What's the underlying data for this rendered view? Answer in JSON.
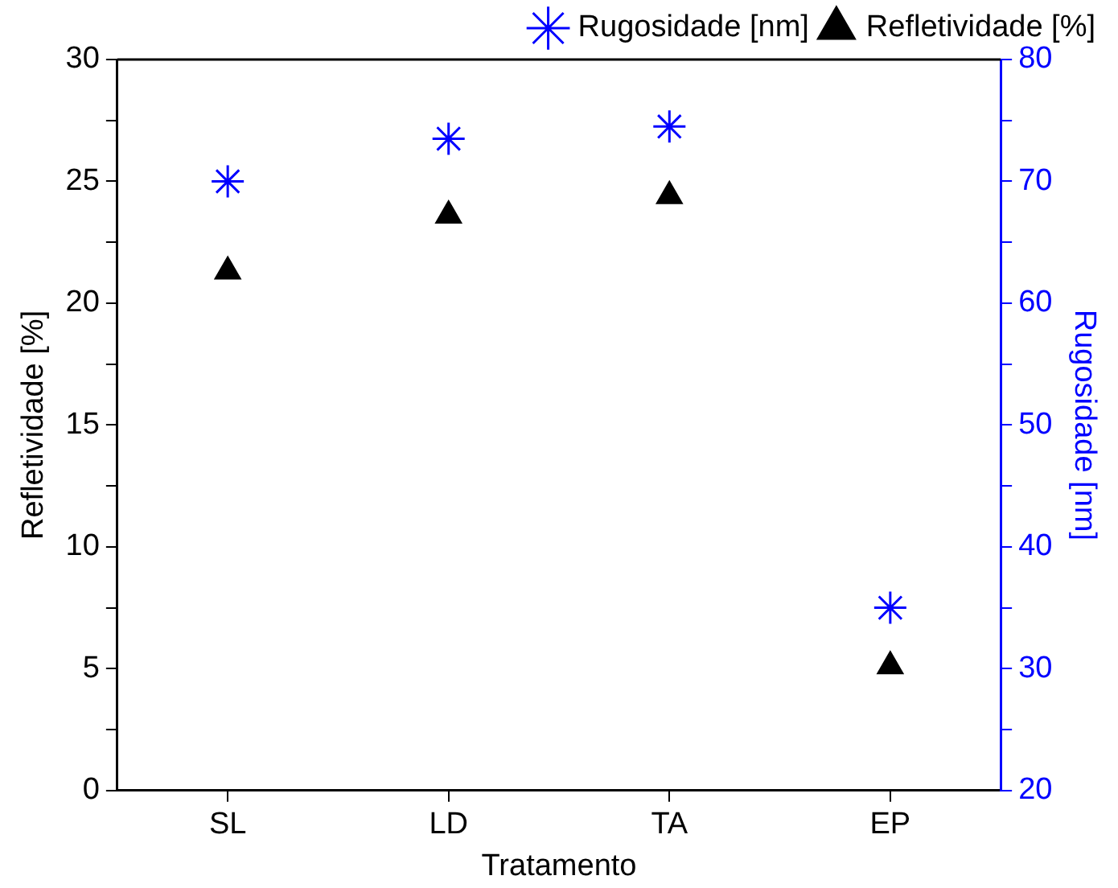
{
  "chart_data": {
    "type": "scatter",
    "xlabel": "Tratamento",
    "ylabel": "Refletividade [%]",
    "y2label": "Rugosidade [nm]",
    "categories": [
      "SL",
      "LD",
      "TA",
      "EP"
    ],
    "series": [
      {
        "name": "Rugosidade [nm]",
        "color": "#0000ff",
        "marker": "cross",
        "axis": "y2",
        "values": [
          70,
          73.5,
          74.5,
          35
        ]
      },
      {
        "name": "Refletividade [%]",
        "color": "#000000",
        "marker": "triangle",
        "values": [
          21.3,
          23.6,
          24.4,
          5.1
        ]
      }
    ],
    "ylim": [
      0,
      30
    ],
    "yticks": [
      0,
      {
        "value": 2.5,
        "label": null
      },
      5,
      {
        "value": 7.5,
        "label": null
      },
      10,
      {
        "value": 12.5,
        "label": null
      },
      15,
      {
        "value": 17.5,
        "label": null
      },
      20,
      {
        "value": 22.5,
        "label": null
      },
      25,
      {
        "value": 27.5,
        "label": null
      },
      30
    ],
    "y2lim": [
      20,
      80
    ],
    "y2ticks": [
      20,
      {
        "value": 25,
        "label": null
      },
      30,
      {
        "value": 35,
        "label": null
      },
      40,
      {
        "value": 45,
        "label": null
      },
      50,
      {
        "value": 55,
        "label": null
      },
      60,
      {
        "value": 65,
        "label": null
      },
      70,
      {
        "value": 75,
        "label": null
      },
      80
    ],
    "grid": false,
    "legend": "top right"
  }
}
